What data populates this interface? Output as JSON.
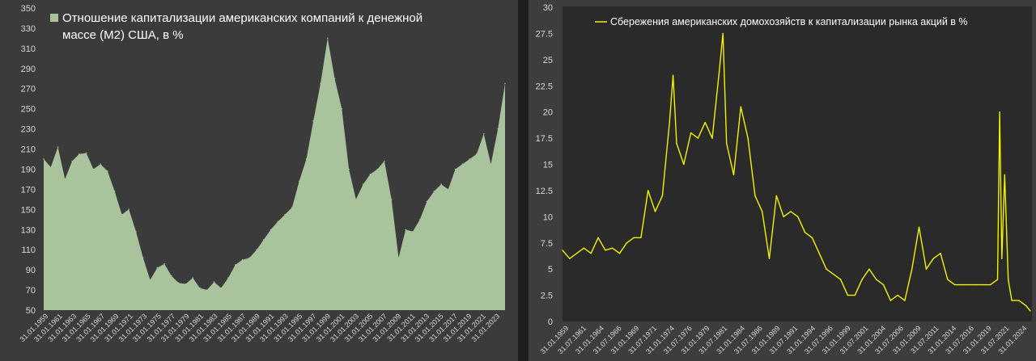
{
  "colors": {
    "left_fill": "#a9c39c",
    "left_plot_bg": "#3b3b3b",
    "right_line": "#f2f200",
    "right_plot_bg": "#2a2a2a",
    "tick_text": "#d9d9d9",
    "legend_text": "#ffffff"
  },
  "chart_data": [
    {
      "type": "area",
      "title": "",
      "legend": {
        "line1": "Отношение капитализации американских компаний к денежной",
        "line2": "массе (M2) США, в %",
        "placement": "top-left"
      },
      "xlabel": "",
      "ylabel": "",
      "ylim": [
        50,
        350
      ],
      "yticks": [
        "50",
        "70",
        "90",
        "110",
        "130",
        "150",
        "170",
        "190",
        "210",
        "230",
        "250",
        "270",
        "290",
        "310",
        "330",
        "350"
      ],
      "xticks": [
        "31.01.1959",
        "31.01.1961",
        "31.01.1963",
        "31.01.1965",
        "31.01.1967",
        "31.01.1969",
        "31.01.1971",
        "31.01.1973",
        "31.01.1975",
        "31.01.1977",
        "31.01.1979",
        "31.01.1981",
        "31.01.1983",
        "31.01.1985",
        "31.01.1987",
        "31.01.1989",
        "31.01.1991",
        "31.01.1993",
        "31.01.1995",
        "31.01.1997",
        "31.01.1999",
        "31.01.2001",
        "31.01.2003",
        "31.01.2005",
        "31.01.2007",
        "31.01.2009",
        "31.01.2011",
        "31.01.2013",
        "31.01.2015",
        "31.01.2017",
        "31.01.2019",
        "31.01.2021",
        "31.01.2023"
      ],
      "grid": false,
      "x": [
        1959,
        1960,
        1961,
        1962,
        1963,
        1964,
        1965,
        1966,
        1967,
        1968,
        1969,
        1970,
        1971,
        1972,
        1973,
        1974,
        1975,
        1976,
        1977,
        1978,
        1979,
        1980,
        1981,
        1982,
        1983,
        1984,
        1985,
        1986,
        1987,
        1988,
        1989,
        1990,
        1991,
        1992,
        1993,
        1994,
        1995,
        1996,
        1997,
        1998,
        1999,
        2000,
        2001,
        2002,
        2003,
        2004,
        2005,
        2006,
        2007,
        2008,
        2009,
        2010,
        2011,
        2012,
        2013,
        2014,
        2015,
        2016,
        2017,
        2018,
        2019,
        2020,
        2021,
        2022,
        2023,
        2024
      ],
      "values": [
        200,
        192,
        212,
        180,
        198,
        205,
        206,
        190,
        195,
        188,
        168,
        145,
        150,
        128,
        102,
        80,
        92,
        96,
        84,
        77,
        76,
        82,
        72,
        70,
        78,
        72,
        82,
        95,
        100,
        102,
        110,
        120,
        130,
        138,
        145,
        152,
        178,
        200,
        238,
        275,
        320,
        280,
        250,
        190,
        160,
        175,
        185,
        190,
        198,
        160,
        102,
        130,
        128,
        140,
        158,
        168,
        175,
        170,
        190,
        195,
        200,
        205,
        225,
        195,
        230,
        275
      ],
      "series_name": "Отношение капитализации американских компаний к денежной массе (M2) США, в %"
    },
    {
      "type": "line",
      "title": "",
      "legend": {
        "text": "Сбережения американских домохозяйств к капитализации рынка акций в %",
        "placement": "top-center"
      },
      "xlabel": "",
      "ylabel": "",
      "ylim": [
        0,
        30
      ],
      "yticks": [
        "0",
        "2.5",
        "5",
        "7.5",
        "10",
        "12.5",
        "15",
        "17.5",
        "20",
        "22.5",
        "25",
        "27.5",
        "30"
      ],
      "xticks": [
        "31.01.1959",
        "31.07.1961",
        "31.01.1964",
        "31.07.1966",
        "31.01.1969",
        "31.07.1971",
        "31.01.1974",
        "31.07.1976",
        "31.01.1979",
        "31.07.1981",
        "31.01.1984",
        "31.07.1986",
        "31.01.1989",
        "31.07.1991",
        "31.01.1994",
        "31.07.1996",
        "31.01.1999",
        "31.07.2001",
        "31.01.2004",
        "31.07.2006",
        "31.01.2009",
        "31.07.2011",
        "31.01.2014",
        "31.07.2016",
        "31.01.2019",
        "31.07.2021",
        "31.01.2024"
      ],
      "grid": false,
      "x": [
        1959,
        1960,
        1961,
        1962,
        1963,
        1964,
        1965,
        1966,
        1967,
        1968,
        1969,
        1970,
        1971,
        1972,
        1973,
        1974,
        1974.5,
        1975,
        1976,
        1977,
        1978,
        1979,
        1980,
        1981,
        1981.5,
        1982,
        1983,
        1984,
        1985,
        1986,
        1987,
        1988,
        1989,
        1990,
        1991,
        1992,
        1993,
        1994,
        1995,
        1996,
        1997,
        1998,
        1999,
        2000,
        2001,
        2002,
        2003,
        2004,
        2005,
        2006,
        2007,
        2008,
        2009,
        2010,
        2011,
        2012,
        2013,
        2014,
        2015,
        2016,
        2017,
        2018,
        2019,
        2020,
        2020.3,
        2020.6,
        2021,
        2021.5,
        2022,
        2023,
        2024,
        2024.6
      ],
      "values": [
        6.8,
        6.0,
        6.5,
        7.0,
        6.5,
        8.0,
        6.8,
        7.0,
        6.5,
        7.5,
        8.0,
        8.0,
        12.5,
        10.5,
        12.0,
        19.0,
        23.5,
        17.0,
        15.0,
        18.0,
        17.5,
        19.0,
        17.5,
        24.0,
        27.5,
        17.0,
        14.0,
        20.5,
        17.5,
        12.0,
        10.5,
        6.0,
        12.0,
        10.0,
        10.5,
        10.0,
        8.5,
        8.0,
        6.5,
        5.0,
        4.5,
        4.0,
        2.5,
        2.5,
        4.0,
        5.0,
        4.0,
        3.5,
        2.0,
        2.5,
        2.0,
        5.0,
        9.0,
        5.0,
        6.0,
        6.5,
        4.0,
        3.5,
        3.5,
        3.5,
        3.5,
        3.5,
        3.5,
        4.0,
        20.0,
        6.0,
        14.0,
        4.0,
        2.0,
        2.0,
        1.5,
        1.0
      ],
      "series_name": "Сбережения американских домохозяйств к капитализации рынка акций в %"
    }
  ]
}
